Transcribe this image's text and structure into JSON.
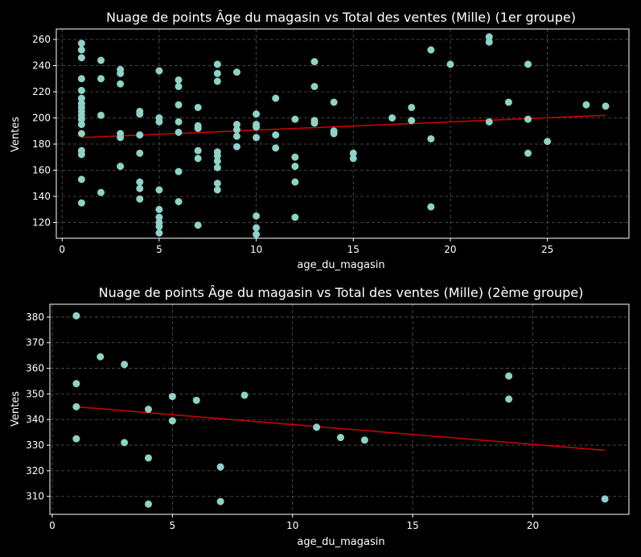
{
  "chart_data": [
    {
      "type": "scatter",
      "title": "Nuage de points Âge du magasin vs Total des ventes (Mille) (1er groupe)",
      "xlabel": "age_du_magasin",
      "ylabel": "Ventes",
      "xlim": [
        -0.3,
        29.2
      ],
      "ylim": [
        108,
        268
      ],
      "xticks": [
        0,
        5,
        10,
        15,
        20,
        25
      ],
      "yticks": [
        120,
        140,
        160,
        180,
        200,
        220,
        240,
        260
      ],
      "grid": true,
      "point_color": "#8dd3c7",
      "line_color": "#cc0000",
      "trendline": {
        "x": [
          1,
          28
        ],
        "y": [
          185,
          202
        ]
      },
      "points": [
        [
          1,
          257
        ],
        [
          1,
          252
        ],
        [
          1,
          246
        ],
        [
          1,
          230
        ],
        [
          1,
          221
        ],
        [
          1,
          215
        ],
        [
          1,
          211
        ],
        [
          1,
          208
        ],
        [
          1,
          205
        ],
        [
          1,
          202
        ],
        [
          1,
          199
        ],
        [
          1,
          195
        ],
        [
          1,
          188
        ],
        [
          1,
          175
        ],
        [
          1,
          172
        ],
        [
          1,
          153
        ],
        [
          1,
          135
        ],
        [
          2,
          244
        ],
        [
          2,
          230
        ],
        [
          2,
          202
        ],
        [
          2,
          143
        ],
        [
          3,
          237
        ],
        [
          3,
          234
        ],
        [
          3,
          226
        ],
        [
          3,
          188
        ],
        [
          3,
          185
        ],
        [
          3,
          163
        ],
        [
          4,
          205
        ],
        [
          4,
          203
        ],
        [
          4,
          187
        ],
        [
          4,
          173
        ],
        [
          4,
          151
        ],
        [
          4,
          146
        ],
        [
          4,
          138
        ],
        [
          5,
          236
        ],
        [
          5,
          200
        ],
        [
          5,
          197
        ],
        [
          5,
          145
        ],
        [
          5,
          130
        ],
        [
          5,
          124
        ],
        [
          5,
          120
        ],
        [
          5,
          117
        ],
        [
          5,
          112
        ],
        [
          6,
          229
        ],
        [
          6,
          224
        ],
        [
          6,
          210
        ],
        [
          6,
          197
        ],
        [
          6,
          189
        ],
        [
          6,
          159
        ],
        [
          6,
          136
        ],
        [
          7,
          208
        ],
        [
          7,
          194
        ],
        [
          7,
          192
        ],
        [
          7,
          175
        ],
        [
          7,
          169
        ],
        [
          7,
          118
        ],
        [
          8,
          241
        ],
        [
          8,
          234
        ],
        [
          8,
          228
        ],
        [
          8,
          174
        ],
        [
          8,
          171
        ],
        [
          8,
          167
        ],
        [
          8,
          162
        ],
        [
          8,
          150
        ],
        [
          8,
          145
        ],
        [
          9,
          235
        ],
        [
          9,
          195
        ],
        [
          9,
          191
        ],
        [
          9,
          186
        ],
        [
          9,
          178
        ],
        [
          10,
          203
        ],
        [
          10,
          195
        ],
        [
          10,
          193
        ],
        [
          10,
          185
        ],
        [
          10,
          125
        ],
        [
          10,
          116
        ],
        [
          10,
          111
        ],
        [
          11,
          215
        ],
        [
          11,
          187
        ],
        [
          11,
          177
        ],
        [
          12,
          199
        ],
        [
          12,
          170
        ],
        [
          12,
          163
        ],
        [
          12,
          151
        ],
        [
          12,
          124
        ],
        [
          13,
          243
        ],
        [
          13,
          224
        ],
        [
          13,
          198
        ],
        [
          13,
          196
        ],
        [
          14,
          212
        ],
        [
          14,
          190
        ],
        [
          14,
          188
        ],
        [
          15,
          173
        ],
        [
          15,
          169
        ],
        [
          17,
          200
        ],
        [
          18,
          208
        ],
        [
          18,
          198
        ],
        [
          19,
          252
        ],
        [
          19,
          184
        ],
        [
          19,
          132
        ],
        [
          20,
          241
        ],
        [
          22,
          262
        ],
        [
          22,
          258
        ],
        [
          22,
          197
        ],
        [
          23,
          212
        ],
        [
          24,
          241
        ],
        [
          24,
          199
        ],
        [
          24,
          173
        ],
        [
          25,
          182
        ],
        [
          27,
          210
        ],
        [
          28,
          209
        ]
      ]
    },
    {
      "type": "scatter",
      "title": "Nuage de points Âge du magasin vs Total des ventes (Mille) (2ème groupe)",
      "xlabel": "age_du_magasin",
      "ylabel": "Ventes",
      "xlim": [
        -0.1,
        24.0
      ],
      "ylim": [
        303,
        385
      ],
      "xticks": [
        0,
        5,
        10,
        15,
        20
      ],
      "yticks": [
        310,
        320,
        330,
        340,
        350,
        360,
        370,
        380
      ],
      "grid": true,
      "point_color": "#8dd3c7",
      "line_color": "#cc0000",
      "trendline": {
        "x": [
          1,
          23
        ],
        "y": [
          345,
          328
        ]
      },
      "points": [
        [
          1,
          380.5
        ],
        [
          1,
          354
        ],
        [
          1,
          345
        ],
        [
          1,
          332.5
        ],
        [
          2,
          364.5
        ],
        [
          3,
          361.5
        ],
        [
          3,
          331
        ],
        [
          4,
          344
        ],
        [
          4,
          325
        ],
        [
          4,
          307
        ],
        [
          5,
          349
        ],
        [
          5,
          339.5
        ],
        [
          6,
          347.5
        ],
        [
          7,
          321.5
        ],
        [
          7,
          308
        ],
        [
          8,
          349.5
        ],
        [
          11,
          337
        ],
        [
          12,
          333
        ],
        [
          13,
          332
        ],
        [
          19,
          357
        ],
        [
          19,
          348
        ],
        [
          23,
          309
        ]
      ]
    }
  ]
}
